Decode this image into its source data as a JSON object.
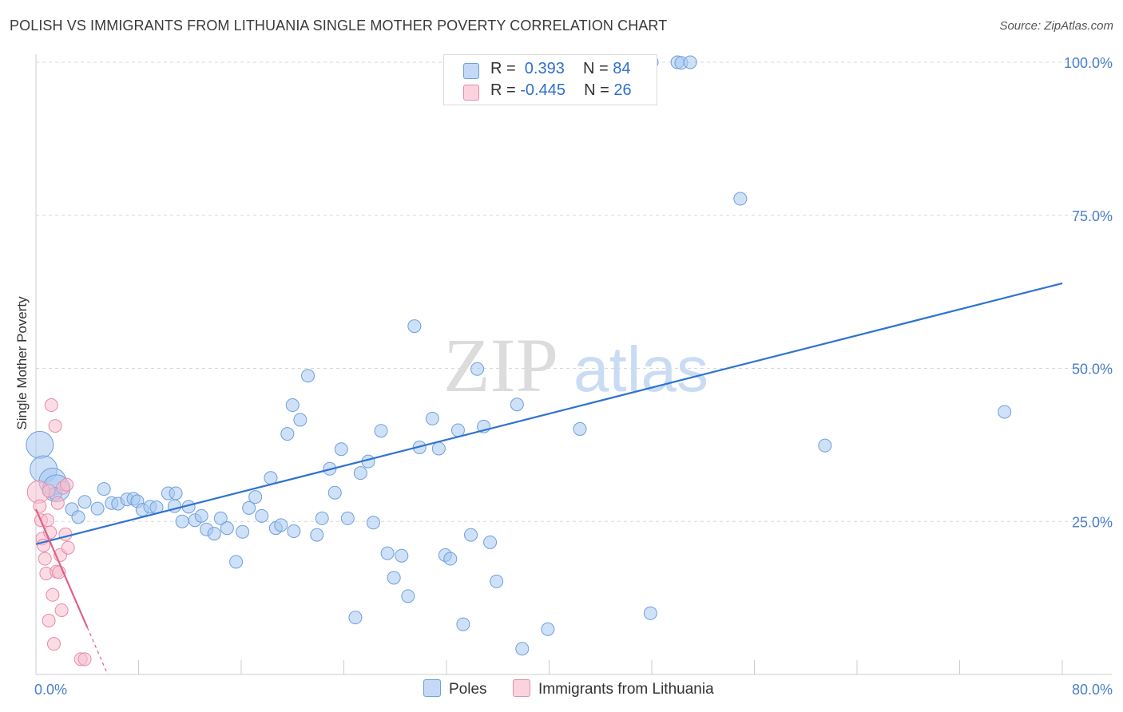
{
  "title": "POLISH VS IMMIGRANTS FROM LITHUANIA SINGLE MOTHER POVERTY CORRELATION CHART",
  "source": "Source: ZipAtlas.com",
  "watermark": {
    "part1": "ZIP",
    "part2": "atlas"
  },
  "colors": {
    "blue_fill": "#a8c8f0",
    "blue_stroke": "#6e9fdc",
    "blue_line": "#2f73d0",
    "pink_fill": "#f7bfd0",
    "pink_stroke": "#e88aa8",
    "pink_line": "#e0608a",
    "grid": "#d8d8d8",
    "tick_text": "#4a80c8"
  },
  "legend": {
    "rows": [
      {
        "r_label": "R =",
        "r_value": " 0.393",
        "n_label": "N =",
        "n_value": "84"
      },
      {
        "r_label": "R =",
        "r_value": "-0.445",
        "n_label": "N =",
        "n_value": "26"
      }
    ]
  },
  "bottom_legend": {
    "series1": "Poles",
    "series2": "Immigrants from Lithuania"
  },
  "chart_data": {
    "type": "scatter",
    "xlabel": "",
    "ylabel": "Single Mother Poverty",
    "xlim": [
      0,
      80
    ],
    "ylim": [
      0,
      100
    ],
    "x_tick_labels": [
      "0.0%",
      "80.0%"
    ],
    "y_tick_labels": [
      "25.0%",
      "50.0%",
      "75.0%",
      "100.0%"
    ],
    "y_ticks": [
      25,
      50,
      75,
      100
    ],
    "grid": true,
    "legend_position": "top-center",
    "series": [
      {
        "name": "Poles",
        "color": "#a8c8f0",
        "trend": {
          "x": [
            0,
            80
          ],
          "y": [
            21.3,
            63.9
          ]
        },
        "points": [
          [
            0.3,
            37.5
          ],
          [
            0.6,
            33.5
          ],
          [
            1.3,
            31.5
          ],
          [
            1.6,
            30.4
          ],
          [
            1.5,
            29.5
          ],
          [
            2.8,
            27.0
          ],
          [
            3.3,
            25.7
          ],
          [
            3.8,
            28.2
          ],
          [
            4.8,
            27.1
          ],
          [
            5.3,
            30.3
          ],
          [
            5.9,
            28.0
          ],
          [
            6.4,
            27.9
          ],
          [
            7.1,
            28.6
          ],
          [
            7.6,
            28.7
          ],
          [
            7.9,
            28.3
          ],
          [
            8.3,
            26.9
          ],
          [
            8.9,
            27.4
          ],
          [
            9.4,
            27.3
          ],
          [
            10.3,
            29.6
          ],
          [
            10.8,
            27.5
          ],
          [
            10.9,
            29.6
          ],
          [
            11.9,
            27.4
          ],
          [
            11.4,
            25.0
          ],
          [
            12.4,
            25.2
          ],
          [
            12.9,
            25.9
          ],
          [
            13.3,
            23.7
          ],
          [
            13.9,
            23.0
          ],
          [
            14.4,
            25.5
          ],
          [
            14.9,
            23.9
          ],
          [
            15.6,
            18.4
          ],
          [
            16.1,
            23.3
          ],
          [
            16.6,
            27.2
          ],
          [
            17.1,
            29.0
          ],
          [
            17.6,
            25.9
          ],
          [
            18.3,
            32.1
          ],
          [
            18.7,
            23.9
          ],
          [
            19.1,
            24.4
          ],
          [
            19.6,
            39.3
          ],
          [
            20.1,
            23.4
          ],
          [
            20.6,
            41.6
          ],
          [
            21.2,
            48.8
          ],
          [
            21.9,
            22.8
          ],
          [
            22.3,
            25.5
          ],
          [
            22.9,
            33.6
          ],
          [
            23.3,
            29.7
          ],
          [
            23.8,
            36.8
          ],
          [
            24.3,
            25.5
          ],
          [
            24.9,
            9.3
          ],
          [
            25.3,
            32.9
          ],
          [
            25.9,
            34.8
          ],
          [
            26.3,
            24.8
          ],
          [
            26.9,
            39.8
          ],
          [
            27.4,
            19.8
          ],
          [
            27.9,
            15.8
          ],
          [
            28.5,
            19.4
          ],
          [
            29.0,
            12.8
          ],
          [
            29.5,
            56.9
          ],
          [
            29.9,
            37.1
          ],
          [
            30.9,
            41.8
          ],
          [
            31.4,
            36.9
          ],
          [
            31.9,
            19.5
          ],
          [
            32.3,
            18.9
          ],
          [
            32.9,
            39.9
          ],
          [
            33.3,
            8.2
          ],
          [
            33.9,
            22.8
          ],
          [
            34.4,
            49.9
          ],
          [
            34.9,
            40.5
          ],
          [
            35.4,
            21.6
          ],
          [
            35.9,
            15.2
          ],
          [
            37.5,
            44.1
          ],
          [
            37.9,
            4.2
          ],
          [
            39.9,
            7.4
          ],
          [
            42.4,
            40.1
          ],
          [
            47.9,
            10.0
          ],
          [
            50.0,
            100.0
          ],
          [
            50.3,
            99.9
          ],
          [
            54.9,
            77.7
          ],
          [
            61.5,
            37.4
          ],
          [
            75.5,
            42.9
          ],
          [
            36.5,
            100.0
          ],
          [
            43.0,
            100.0
          ],
          [
            48.0,
            100.0
          ],
          [
            51.0,
            100.0
          ],
          [
            20.0,
            44.0
          ]
        ]
      },
      {
        "name": "Immigrants from Lithuania",
        "color": "#f7bfd0",
        "trend": {
          "x": [
            0,
            4.0
          ],
          "y": [
            27.0,
            7.7
          ]
        },
        "points": [
          [
            0.2,
            29.8
          ],
          [
            0.4,
            25.2
          ],
          [
            0.5,
            22.2
          ],
          [
            0.6,
            21.1
          ],
          [
            0.7,
            18.9
          ],
          [
            0.8,
            16.5
          ],
          [
            0.9,
            25.2
          ],
          [
            1.0,
            8.8
          ],
          [
            1.1,
            23.2
          ],
          [
            1.2,
            44.0
          ],
          [
            1.3,
            13.0
          ],
          [
            1.4,
            5.0
          ],
          [
            1.5,
            40.6
          ],
          [
            1.6,
            16.8
          ],
          [
            1.7,
            28.0
          ],
          [
            1.8,
            16.7
          ],
          [
            1.9,
            19.5
          ],
          [
            2.0,
            10.5
          ],
          [
            2.1,
            30.5
          ],
          [
            2.3,
            22.9
          ],
          [
            2.4,
            31.0
          ],
          [
            2.5,
            20.7
          ],
          [
            3.5,
            2.5
          ],
          [
            3.8,
            2.5
          ],
          [
            0.3,
            27.5
          ],
          [
            1.0,
            30.0
          ]
        ]
      }
    ]
  }
}
